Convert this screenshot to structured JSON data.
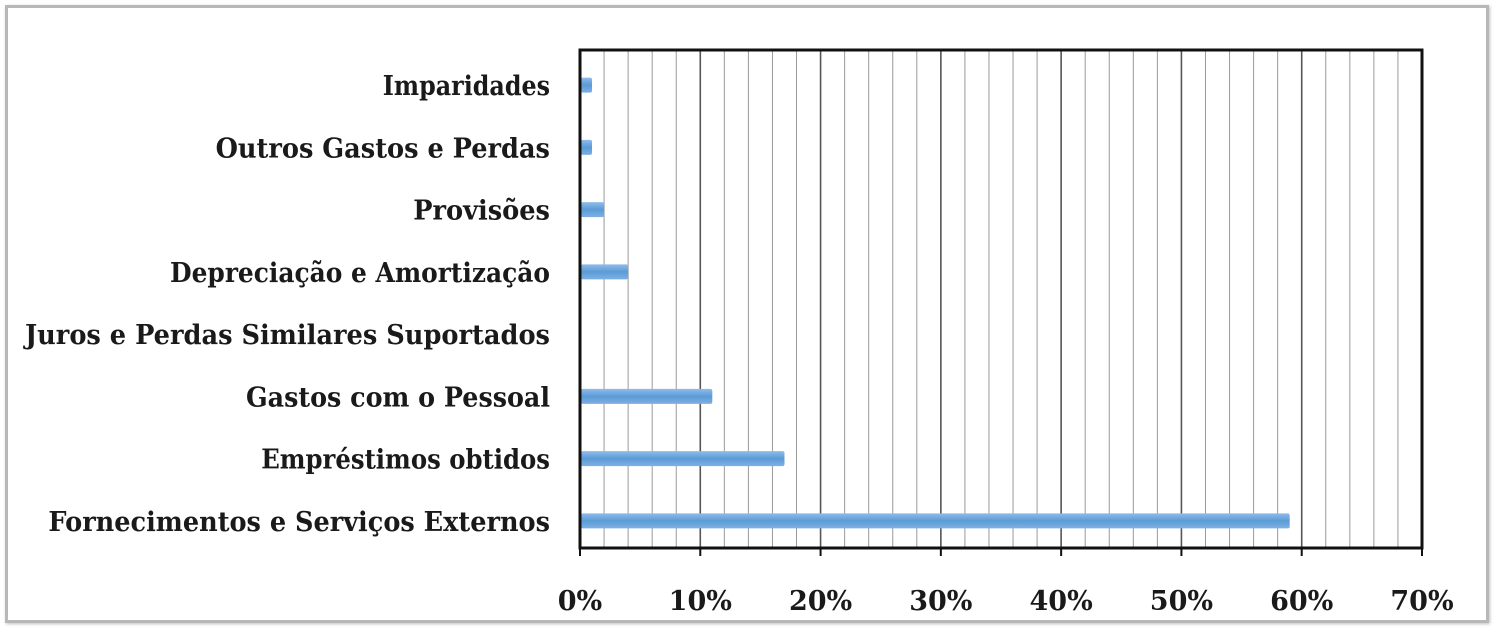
{
  "chart_data": {
    "type": "bar",
    "orientation": "horizontal",
    "title": "",
    "xlabel": "",
    "ylabel": "",
    "categories": [
      "Imparidades",
      "Outros Gastos e Perdas",
      "Provisões",
      "Depreciação e Amortização",
      "Juros e Perdas Similares Suportados",
      "Gastos com o Pessoal",
      "Empréstimos obtidos",
      "Fornecimentos e Serviços Externos"
    ],
    "values": [
      0.01,
      0.01,
      0.02,
      0.04,
      0.0,
      0.11,
      0.17,
      0.59
    ],
    "xlim": [
      0,
      0.7
    ],
    "x_ticks": [
      "0%",
      "10%",
      "20%",
      "30%",
      "40%",
      "50%",
      "60%",
      "70%"
    ],
    "grid": "vertical",
    "legend": "none",
    "bar_color": "#5b9bd5"
  }
}
